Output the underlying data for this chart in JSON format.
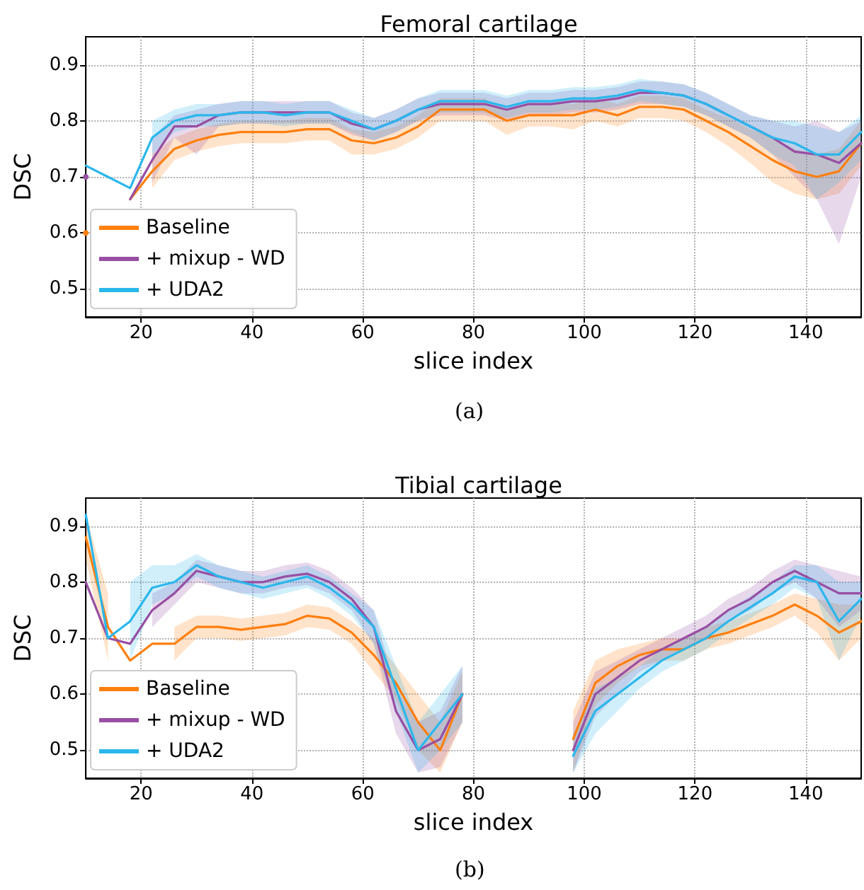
{
  "chart_data": [
    {
      "type": "line",
      "title": "Femoral cartilage",
      "xlabel": "slice index",
      "ylabel": "DSC",
      "annotations": [
        "(a)"
      ],
      "xlim": [
        10,
        150
      ],
      "ylim": [
        0.45,
        0.95
      ],
      "xticks": [
        20,
        40,
        60,
        80,
        100,
        120,
        140
      ],
      "yticks": [
        0.5,
        0.6,
        0.7,
        0.8,
        0.9
      ],
      "grid": true,
      "legend": "bottom left",
      "marker": "none",
      "line_style": "solid",
      "x": [
        10,
        14,
        18,
        22,
        26,
        30,
        34,
        38,
        42,
        46,
        50,
        54,
        58,
        62,
        66,
        70,
        74,
        78,
        82,
        86,
        90,
        94,
        98,
        102,
        106,
        110,
        114,
        118,
        122,
        126,
        130,
        134,
        138,
        142,
        146,
        150
      ],
      "series": [
        {
          "name": "Baseline",
          "color": "#ff7f0e",
          "values": [
            0.6,
            null,
            0.66,
            0.71,
            0.75,
            0.765,
            0.775,
            0.78,
            0.78,
            0.78,
            0.785,
            0.785,
            0.765,
            0.76,
            0.77,
            0.79,
            0.82,
            0.82,
            0.82,
            0.8,
            0.81,
            0.81,
            0.81,
            0.82,
            0.81,
            0.825,
            0.825,
            0.82,
            0.8,
            0.78,
            0.755,
            0.73,
            0.71,
            0.7,
            0.71,
            0.76
          ],
          "lower": [
            null,
            null,
            null,
            0.68,
            0.73,
            0.745,
            0.755,
            0.76,
            0.76,
            0.76,
            0.765,
            0.765,
            0.74,
            0.74,
            0.75,
            0.77,
            0.8,
            0.8,
            0.8,
            0.775,
            0.79,
            0.79,
            0.785,
            0.8,
            0.79,
            0.805,
            0.805,
            0.8,
            0.78,
            0.755,
            0.725,
            0.69,
            0.67,
            0.66,
            0.67,
            0.72
          ],
          "upper": [
            null,
            null,
            null,
            0.74,
            0.77,
            0.785,
            0.795,
            0.8,
            0.8,
            0.8,
            0.805,
            0.805,
            0.785,
            0.78,
            0.79,
            0.81,
            0.84,
            0.84,
            0.84,
            0.82,
            0.83,
            0.83,
            0.83,
            0.84,
            0.83,
            0.845,
            0.845,
            0.84,
            0.82,
            0.805,
            0.785,
            0.77,
            0.75,
            0.74,
            0.75,
            0.8
          ]
        },
        {
          "name": "+ mixup - WD",
          "color": "#984ea3",
          "values": [
            0.7,
            null,
            0.66,
            0.73,
            0.79,
            0.79,
            0.81,
            0.815,
            0.815,
            0.815,
            0.815,
            0.815,
            0.795,
            0.785,
            0.8,
            0.82,
            0.83,
            0.83,
            0.83,
            0.82,
            0.83,
            0.83,
            0.835,
            0.835,
            0.84,
            0.85,
            0.85,
            0.845,
            0.83,
            0.81,
            0.79,
            0.77,
            0.745,
            0.74,
            0.725,
            0.76
          ],
          "lower": [
            null,
            null,
            null,
            0.69,
            0.77,
            0.74,
            0.79,
            0.795,
            0.795,
            0.795,
            0.795,
            0.795,
            0.775,
            0.765,
            0.78,
            0.8,
            0.81,
            0.81,
            0.81,
            0.8,
            0.81,
            0.81,
            0.815,
            0.815,
            0.82,
            0.83,
            0.83,
            0.825,
            0.81,
            0.79,
            0.77,
            0.74,
            0.7,
            0.66,
            0.58,
            0.7
          ],
          "upper": [
            null,
            null,
            null,
            0.77,
            0.81,
            0.82,
            0.83,
            0.835,
            0.835,
            0.835,
            0.835,
            0.835,
            0.815,
            0.805,
            0.82,
            0.84,
            0.85,
            0.85,
            0.85,
            0.84,
            0.85,
            0.85,
            0.855,
            0.855,
            0.86,
            0.87,
            0.87,
            0.865,
            0.85,
            0.83,
            0.81,
            0.8,
            0.79,
            0.8,
            0.78,
            0.8
          ]
        },
        {
          "name": "+ UDA2",
          "color": "#2ab7ec",
          "values": [
            0.72,
            0.7,
            0.68,
            0.77,
            0.8,
            0.81,
            0.81,
            0.815,
            0.815,
            0.81,
            0.815,
            0.815,
            0.8,
            0.785,
            0.8,
            0.82,
            0.835,
            0.835,
            0.835,
            0.825,
            0.835,
            0.835,
            0.84,
            0.84,
            0.845,
            0.855,
            0.85,
            0.845,
            0.83,
            0.81,
            0.79,
            0.77,
            0.76,
            0.74,
            0.74,
            0.78
          ],
          "lower": [
            null,
            null,
            null,
            0.74,
            0.78,
            0.79,
            0.79,
            0.795,
            0.795,
            0.79,
            0.795,
            0.795,
            0.78,
            0.765,
            0.78,
            0.8,
            0.815,
            0.815,
            0.815,
            0.805,
            0.815,
            0.815,
            0.82,
            0.82,
            0.825,
            0.835,
            0.83,
            0.825,
            0.81,
            0.79,
            0.77,
            0.74,
            0.72,
            0.66,
            0.69,
            0.73
          ],
          "upper": [
            null,
            null,
            null,
            0.8,
            0.82,
            0.83,
            0.83,
            0.835,
            0.835,
            0.83,
            0.835,
            0.835,
            0.82,
            0.805,
            0.82,
            0.84,
            0.855,
            0.855,
            0.855,
            0.845,
            0.855,
            0.855,
            0.86,
            0.86,
            0.865,
            0.875,
            0.87,
            0.865,
            0.85,
            0.83,
            0.81,
            0.8,
            0.8,
            0.79,
            0.78,
            0.81
          ]
        }
      ]
    },
    {
      "type": "line",
      "title": "Tibial cartilage",
      "xlabel": "slice index",
      "ylabel": "DSC",
      "annotations": [
        "(b)"
      ],
      "xlim": [
        10,
        150
      ],
      "ylim": [
        0.45,
        0.95
      ],
      "xticks": [
        20,
        40,
        60,
        80,
        100,
        120,
        140
      ],
      "yticks": [
        0.5,
        0.6,
        0.7,
        0.8,
        0.9
      ],
      "grid": true,
      "legend": "bottom left",
      "marker": "none",
      "line_style": "solid",
      "x": [
        10,
        14,
        18,
        22,
        26,
        30,
        34,
        38,
        42,
        46,
        50,
        54,
        58,
        62,
        66,
        70,
        74,
        78,
        82,
        86,
        90,
        94,
        98,
        102,
        106,
        110,
        114,
        118,
        122,
        126,
        130,
        134,
        138,
        142,
        146,
        150
      ],
      "series": [
        {
          "name": "Baseline",
          "color": "#ff7f0e",
          "values": [
            0.88,
            0.72,
            0.66,
            0.69,
            0.69,
            0.72,
            0.72,
            0.715,
            0.72,
            0.725,
            0.74,
            0.735,
            0.71,
            0.67,
            0.62,
            0.55,
            0.5,
            0.6,
            null,
            null,
            null,
            null,
            0.52,
            0.62,
            0.65,
            0.67,
            0.68,
            0.68,
            0.7,
            0.71,
            0.725,
            0.74,
            0.76,
            0.74,
            0.71,
            0.73
          ],
          "lower": [
            0.84,
            0.66,
            null,
            null,
            0.66,
            0.7,
            0.7,
            0.695,
            0.7,
            0.705,
            0.72,
            0.715,
            0.69,
            0.64,
            0.59,
            0.5,
            0.46,
            0.55,
            null,
            null,
            null,
            null,
            0.46,
            0.58,
            0.62,
            0.65,
            0.66,
            0.66,
            0.68,
            0.69,
            0.705,
            0.72,
            0.74,
            0.71,
            0.66,
            0.7
          ],
          "upper": [
            0.92,
            0.78,
            null,
            null,
            0.72,
            0.74,
            0.74,
            0.735,
            0.74,
            0.745,
            0.76,
            0.755,
            0.73,
            0.7,
            0.65,
            0.6,
            0.55,
            0.64,
            null,
            null,
            null,
            null,
            0.57,
            0.66,
            0.68,
            0.69,
            0.7,
            0.7,
            0.72,
            0.73,
            0.745,
            0.76,
            0.78,
            0.77,
            0.76,
            0.76
          ]
        },
        {
          "name": "+ mixup - WD",
          "color": "#984ea3",
          "values": [
            0.8,
            0.7,
            0.69,
            0.75,
            0.78,
            0.82,
            0.81,
            0.8,
            0.8,
            0.81,
            0.815,
            0.8,
            0.77,
            0.72,
            0.57,
            0.5,
            0.52,
            0.6,
            null,
            null,
            null,
            null,
            0.5,
            0.6,
            0.63,
            0.66,
            0.68,
            0.7,
            0.72,
            0.75,
            0.77,
            0.8,
            0.82,
            0.8,
            0.78,
            0.78
          ],
          "lower": [
            null,
            null,
            null,
            0.72,
            0.76,
            0.8,
            0.79,
            0.78,
            0.78,
            0.79,
            0.795,
            0.78,
            0.75,
            0.69,
            0.53,
            0.46,
            0.47,
            0.55,
            null,
            null,
            null,
            null,
            0.46,
            0.56,
            0.6,
            0.64,
            0.66,
            0.68,
            0.7,
            0.73,
            0.75,
            0.78,
            0.8,
            0.77,
            0.72,
            0.75
          ],
          "upper": [
            null,
            null,
            null,
            0.78,
            0.8,
            0.84,
            0.83,
            0.82,
            0.82,
            0.83,
            0.835,
            0.82,
            0.79,
            0.75,
            0.61,
            0.55,
            0.57,
            0.65,
            null,
            null,
            null,
            null,
            0.55,
            0.64,
            0.66,
            0.68,
            0.7,
            0.72,
            0.74,
            0.77,
            0.79,
            0.82,
            0.84,
            0.83,
            0.82,
            0.81
          ]
        },
        {
          "name": "+ UDA2",
          "color": "#2ab7ec",
          "values": [
            0.92,
            0.7,
            0.73,
            0.79,
            0.8,
            0.83,
            0.81,
            0.8,
            0.79,
            0.8,
            0.81,
            0.79,
            0.76,
            0.72,
            0.61,
            0.5,
            0.55,
            0.6,
            null,
            null,
            null,
            null,
            0.49,
            0.57,
            0.6,
            0.63,
            0.66,
            0.68,
            0.7,
            0.73,
            0.755,
            0.78,
            0.81,
            0.8,
            0.73,
            0.77
          ],
          "lower": [
            null,
            null,
            0.66,
            0.76,
            0.78,
            0.81,
            0.79,
            0.78,
            0.77,
            0.78,
            0.79,
            0.77,
            0.74,
            0.69,
            0.57,
            0.46,
            0.5,
            0.55,
            null,
            null,
            null,
            null,
            0.46,
            0.53,
            0.57,
            0.61,
            0.64,
            0.66,
            0.68,
            0.71,
            0.735,
            0.76,
            0.79,
            0.77,
            0.66,
            0.74
          ],
          "upper": [
            null,
            null,
            0.8,
            0.83,
            0.83,
            0.85,
            0.83,
            0.82,
            0.81,
            0.82,
            0.83,
            0.81,
            0.78,
            0.75,
            0.65,
            0.55,
            0.6,
            0.65,
            null,
            null,
            null,
            null,
            0.53,
            0.61,
            0.63,
            0.65,
            0.68,
            0.7,
            0.72,
            0.75,
            0.775,
            0.8,
            0.83,
            0.83,
            0.8,
            0.8
          ]
        }
      ]
    }
  ]
}
